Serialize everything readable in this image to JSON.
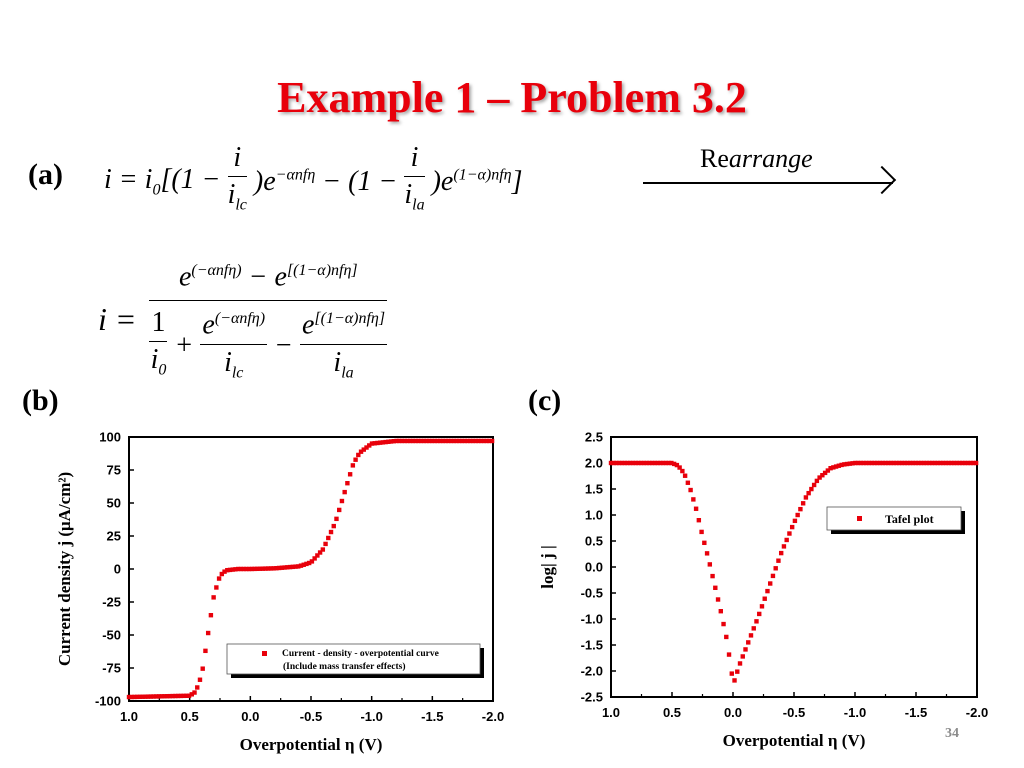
{
  "slide": {
    "title": "Example 1 – Problem 3.2",
    "page_number": "34",
    "accent_color": "#e8000b",
    "labels": {
      "a": "(a)",
      "b": "(b)",
      "c": "(c)"
    },
    "equation_a": "i = i0[(1 − i/ilc)e^(−αnfη) − (1 − i/ila)e^((1−α)nfη)]",
    "rearrange_label": {
      "prefix": "Re",
      "italic": "arrange"
    },
    "equation_rearranged": "i = [e^(−αnfη) − e^[(1−α)nfη]] / [1/i0 + e^(−αnfη)/ilc − e^[(1−α)nfη]/ila]"
  },
  "chart_data": [
    {
      "type": "scatter",
      "panel": "b",
      "title": "",
      "xlabel": "Overpotential η (V)",
      "ylabel": "Current density j (μA/cm²)",
      "xlim": [
        1.0,
        -2.0
      ],
      "ylim": [
        -100,
        100
      ],
      "xticks": [
        "1.0",
        "0.5",
        "0.0",
        "-0.5",
        "-1.0",
        "-1.5",
        "-2.0"
      ],
      "yticks": [
        "100",
        "75",
        "50",
        "25",
        "0",
        "-25",
        "-50",
        "-75",
        "-100"
      ],
      "grid": false,
      "legend_position": "lower right",
      "legend": [
        "Current - density - overpotential curve",
        "(Include mass transfer effects)"
      ],
      "series": [
        {
          "name": "Current - density - overpotential curve (Include mass transfer effects)",
          "color": "#e8000b",
          "x": [
            1.0,
            0.5,
            0.45,
            0.4,
            0.35,
            0.3,
            0.25,
            0.2,
            0.1,
            0.0,
            -0.2,
            -0.4,
            -0.5,
            -0.6,
            -0.7,
            -0.75,
            -0.8,
            -0.85,
            -0.9,
            -1.0,
            -1.2,
            -2.0
          ],
          "y": [
            -97,
            -96,
            -93,
            -80,
            -50,
            -20,
            -5,
            -1,
            0,
            0,
            0.5,
            2,
            5,
            15,
            35,
            50,
            65,
            80,
            88,
            95,
            97,
            97
          ]
        }
      ]
    },
    {
      "type": "scatter",
      "panel": "c",
      "title": "",
      "xlabel": "Overpotential η (V)",
      "ylabel": "log| j |",
      "xlim": [
        1.0,
        -2.0
      ],
      "ylim": [
        -2.5,
        2.5
      ],
      "xticks": [
        "1.0",
        "0.5",
        "0.0",
        "-0.5",
        "-1.0",
        "-1.5",
        "-2.0"
      ],
      "yticks": [
        "2.5",
        "2.0",
        "1.5",
        "1.0",
        "0.5",
        "0.0",
        "-0.5",
        "-1.0",
        "-1.5",
        "-2.0",
        "-2.5"
      ],
      "grid": false,
      "legend_position": "upper right",
      "legend": [
        "Tafel plot"
      ],
      "series": [
        {
          "name": "Tafel plot",
          "color": "#e8000b",
          "x": [
            1.0,
            0.5,
            0.45,
            0.4,
            0.35,
            0.3,
            0.25,
            0.2,
            0.15,
            0.1,
            0.05,
            0.01,
            -0.01,
            -0.05,
            -0.1,
            -0.2,
            -0.3,
            -0.4,
            -0.5,
            -0.6,
            -0.7,
            -0.8,
            -0.9,
            -1.0,
            -2.0
          ],
          "y": [
            2.0,
            2.0,
            1.95,
            1.8,
            1.5,
            1.1,
            0.6,
            0.15,
            -0.35,
            -0.85,
            -1.4,
            -2.05,
            -2.2,
            -1.9,
            -1.6,
            -1.0,
            -0.35,
            0.3,
            0.85,
            1.35,
            1.7,
            1.9,
            1.97,
            2.0,
            2.0
          ]
        }
      ]
    }
  ]
}
